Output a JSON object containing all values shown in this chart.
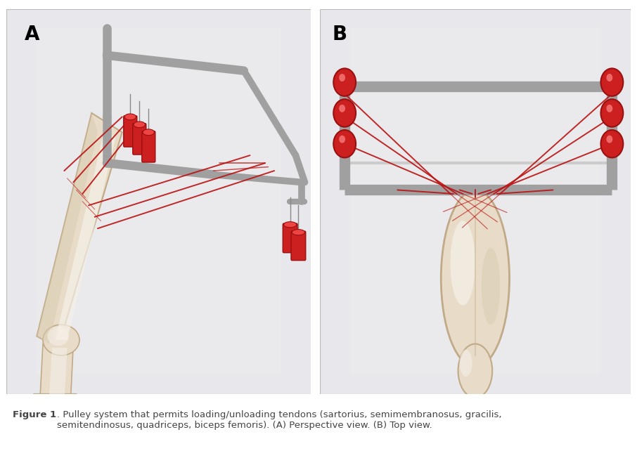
{
  "figure_width": 9.06,
  "figure_height": 6.52,
  "dpi": 100,
  "bg_color": "#ffffff",
  "panel_bg_A": "#e8e8ec",
  "panel_bg_B": "#e8e8ec",
  "label_A": "A",
  "label_B": "B",
  "label_fontsize": 20,
  "label_fontweight": "bold",
  "caption_bold": "Figure 1",
  "caption_rest": ". Pulley system that permits loading/unloading tendons (sartorius, semimembranosus, gracilis,\nsemitendinosus, quadriceps, biceps femoris). (A) Perspective view. (B) Top view.",
  "caption_fontsize": 9.5,
  "caption_color": "#444444",
  "frame_color": "#a0a0a0",
  "frame_lw": 9,
  "tendon_color": "#bb1111",
  "tendon_lw": 1.4,
  "weight_color": "#cc2020",
  "weight_dark": "#991010",
  "bone_color": "#e8dcc8",
  "bone_shade": "#d8ccb0",
  "bone_edge": "#c0aa88",
  "bone_highlight": "#f5f0e8"
}
